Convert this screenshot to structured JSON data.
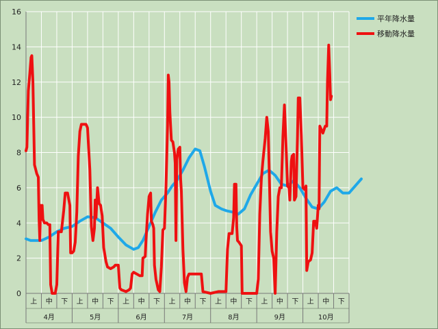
{
  "chart_data": {
    "type": "line",
    "ylim": [
      0,
      16
    ],
    "yticks": [
      "0",
      "2",
      "4",
      "6",
      "8",
      "10",
      "12",
      "14",
      "16"
    ],
    "grid": true,
    "legend_position": "top-right",
    "x_range": [
      0,
      21
    ],
    "sub_labels": [
      "上",
      "中",
      "下",
      "上",
      "中",
      "下",
      "上",
      "中",
      "下",
      "上",
      "中",
      "下",
      "上",
      "中",
      "下",
      "上",
      "中",
      "下",
      "上",
      "中",
      "下"
    ],
    "month_labels": [
      "4月",
      "5月",
      "6月",
      "7月",
      "8月",
      "9月",
      "10月"
    ],
    "colors": {
      "plot_bg": "#c9dfc0",
      "grid": "#ffffff",
      "axis": "#777777"
    },
    "series": [
      {
        "name": "平年降水量",
        "color": "#1fa8e8",
        "points": [
          [
            0.0,
            3.1
          ],
          [
            0.3,
            3.0
          ],
          [
            0.6,
            3.0
          ],
          [
            1.0,
            3.0
          ],
          [
            1.5,
            3.2
          ],
          [
            2.0,
            3.5
          ],
          [
            2.5,
            3.7
          ],
          [
            3.0,
            3.8
          ],
          [
            3.5,
            4.1
          ],
          [
            4.0,
            4.35
          ],
          [
            4.5,
            4.3
          ],
          [
            5.0,
            4.0
          ],
          [
            5.5,
            3.7
          ],
          [
            6.0,
            3.2
          ],
          [
            6.5,
            2.75
          ],
          [
            7.0,
            2.5
          ],
          [
            7.3,
            2.6
          ],
          [
            7.6,
            3.0
          ],
          [
            8.0,
            3.8
          ],
          [
            8.4,
            4.6
          ],
          [
            8.8,
            5.3
          ],
          [
            9.2,
            5.7
          ],
          [
            9.5,
            6.1
          ],
          [
            9.8,
            6.4
          ],
          [
            10.2,
            7.0
          ],
          [
            10.6,
            7.7
          ],
          [
            11.0,
            8.2
          ],
          [
            11.3,
            8.1
          ],
          [
            11.6,
            7.2
          ],
          [
            12.0,
            5.8
          ],
          [
            12.3,
            5.0
          ],
          [
            12.7,
            4.8
          ],
          [
            13.0,
            4.7
          ],
          [
            13.5,
            4.6
          ],
          [
            13.8,
            4.5
          ],
          [
            14.2,
            4.8
          ],
          [
            14.6,
            5.6
          ],
          [
            15.0,
            6.2
          ],
          [
            15.4,
            6.8
          ],
          [
            15.8,
            7.0
          ],
          [
            16.2,
            6.7
          ],
          [
            16.6,
            6.2
          ],
          [
            17.0,
            6.1
          ],
          [
            17.4,
            6.4
          ],
          [
            17.8,
            6.0
          ],
          [
            18.2,
            5.4
          ],
          [
            18.6,
            4.9
          ],
          [
            19.0,
            4.8
          ],
          [
            19.4,
            5.2
          ],
          [
            19.8,
            5.8
          ],
          [
            20.2,
            6.0
          ],
          [
            20.6,
            5.7
          ],
          [
            21.0,
            5.7
          ],
          [
            21.4,
            6.1
          ],
          [
            21.8,
            6.5
          ]
        ]
      },
      {
        "name": "移動降水量",
        "color": "#ee1111",
        "points": [
          [
            0.0,
            8.1
          ],
          [
            0.06,
            8.3
          ],
          [
            0.15,
            11.5
          ],
          [
            0.25,
            12.5
          ],
          [
            0.33,
            13.4
          ],
          [
            0.38,
            13.5
          ],
          [
            0.45,
            12.0
          ],
          [
            0.55,
            7.3
          ],
          [
            0.7,
            6.8
          ],
          [
            0.8,
            6.6
          ],
          [
            0.85,
            4.2
          ],
          [
            0.9,
            3.0
          ],
          [
            0.95,
            5.0
          ],
          [
            1.0,
            4.2
          ],
          [
            1.05,
            5.0
          ],
          [
            1.1,
            4.2
          ],
          [
            1.2,
            4.0
          ],
          [
            1.35,
            4.0
          ],
          [
            1.45,
            3.9
          ],
          [
            1.55,
            3.9
          ],
          [
            1.6,
            0.5
          ],
          [
            1.7,
            0.0
          ],
          [
            1.9,
            0.0
          ],
          [
            2.0,
            0.5
          ],
          [
            2.1,
            3.5
          ],
          [
            2.3,
            3.5
          ],
          [
            2.45,
            4.7
          ],
          [
            2.55,
            5.7
          ],
          [
            2.7,
            5.7
          ],
          [
            2.85,
            5.0
          ],
          [
            2.9,
            2.3
          ],
          [
            3.0,
            2.3
          ],
          [
            3.1,
            2.4
          ],
          [
            3.2,
            2.9
          ],
          [
            3.3,
            4.6
          ],
          [
            3.4,
            7.8
          ],
          [
            3.5,
            9.2
          ],
          [
            3.6,
            9.6
          ],
          [
            3.75,
            9.6
          ],
          [
            3.9,
            9.6
          ],
          [
            4.0,
            9.4
          ],
          [
            4.15,
            7.0
          ],
          [
            4.25,
            3.8
          ],
          [
            4.35,
            3.0
          ],
          [
            4.45,
            3.7
          ],
          [
            4.5,
            5.3
          ],
          [
            4.55,
            4.3
          ],
          [
            4.65,
            6.0
          ],
          [
            4.75,
            5.1
          ],
          [
            4.85,
            5.0
          ],
          [
            4.95,
            4.4
          ],
          [
            5.05,
            2.6
          ],
          [
            5.2,
            1.8
          ],
          [
            5.3,
            1.5
          ],
          [
            5.5,
            1.4
          ],
          [
            5.7,
            1.5
          ],
          [
            5.8,
            1.6
          ],
          [
            6.0,
            1.6
          ],
          [
            6.1,
            0.3
          ],
          [
            6.2,
            0.2
          ],
          [
            6.5,
            0.1
          ],
          [
            6.7,
            0.2
          ],
          [
            6.8,
            0.3
          ],
          [
            6.9,
            1.1
          ],
          [
            7.0,
            1.2
          ],
          [
            7.2,
            1.1
          ],
          [
            7.4,
            1.0
          ],
          [
            7.55,
            1.0
          ],
          [
            7.6,
            2.0
          ],
          [
            7.75,
            2.1
          ],
          [
            7.8,
            3.0
          ],
          [
            7.9,
            4.5
          ],
          [
            8.0,
            5.5
          ],
          [
            8.1,
            5.7
          ],
          [
            8.15,
            4.1
          ],
          [
            8.25,
            3.9
          ],
          [
            8.3,
            3.7
          ],
          [
            8.35,
            1.6
          ],
          [
            8.45,
            0.8
          ],
          [
            8.6,
            0.2
          ],
          [
            8.7,
            0.1
          ],
          [
            8.8,
            1.5
          ],
          [
            8.9,
            3.6
          ],
          [
            9.0,
            3.7
          ],
          [
            9.1,
            6.0
          ],
          [
            9.2,
            9.5
          ],
          [
            9.25,
            12.4
          ],
          [
            9.3,
            12.0
          ],
          [
            9.35,
            10.3
          ],
          [
            9.45,
            8.7
          ],
          [
            9.55,
            8.6
          ],
          [
            9.65,
            8.0
          ],
          [
            9.7,
            7.4
          ],
          [
            9.75,
            3.0
          ],
          [
            9.8,
            7.6
          ],
          [
            9.9,
            8.2
          ],
          [
            10.0,
            8.3
          ],
          [
            10.05,
            6.5
          ],
          [
            10.1,
            5.8
          ],
          [
            10.2,
            2.5
          ],
          [
            10.3,
            0.6
          ],
          [
            10.4,
            0.1
          ],
          [
            10.5,
            0.9
          ],
          [
            10.6,
            1.1
          ],
          [
            11.0,
            1.1
          ],
          [
            11.4,
            1.1
          ],
          [
            11.5,
            0.1
          ],
          [
            12.0,
            0.0
          ],
          [
            12.5,
            0.1
          ],
          [
            13.0,
            0.1
          ],
          [
            13.1,
            2.5
          ],
          [
            13.2,
            3.4
          ],
          [
            13.3,
            3.4
          ],
          [
            13.4,
            3.4
          ],
          [
            13.5,
            4.3
          ],
          [
            13.55,
            6.2
          ],
          [
            13.65,
            6.2
          ],
          [
            13.7,
            3.8
          ],
          [
            13.75,
            3.0
          ],
          [
            13.85,
            2.9
          ],
          [
            14.0,
            2.7
          ],
          [
            14.05,
            0.0
          ],
          [
            14.5,
            0.0
          ],
          [
            15.0,
            0.0
          ],
          [
            15.1,
            0.8
          ],
          [
            15.2,
            4.5
          ],
          [
            15.3,
            6.5
          ],
          [
            15.4,
            7.5
          ],
          [
            15.55,
            8.8
          ],
          [
            15.65,
            10.0
          ],
          [
            15.75,
            9.2
          ],
          [
            15.8,
            7.4
          ],
          [
            15.85,
            5.5
          ],
          [
            15.9,
            3.5
          ],
          [
            16.0,
            2.4
          ],
          [
            16.1,
            2.0
          ],
          [
            16.2,
            0.0
          ],
          [
            16.3,
            3.5
          ],
          [
            16.4,
            5.5
          ],
          [
            16.5,
            6.0
          ],
          [
            16.6,
            6.0
          ],
          [
            16.7,
            8.9
          ],
          [
            16.8,
            10.7
          ],
          [
            16.9,
            8.6
          ],
          [
            17.0,
            6.1
          ],
          [
            17.1,
            6.0
          ],
          [
            17.15,
            5.3
          ],
          [
            17.25,
            7.5
          ],
          [
            17.3,
            7.8
          ],
          [
            17.4,
            7.9
          ],
          [
            17.45,
            5.3
          ],
          [
            17.55,
            5.5
          ],
          [
            17.65,
            8.9
          ],
          [
            17.7,
            11.1
          ],
          [
            17.8,
            11.1
          ],
          [
            17.9,
            9.0
          ],
          [
            18.0,
            6.0
          ],
          [
            18.1,
            5.9
          ],
          [
            18.2,
            6.1
          ],
          [
            18.25,
            1.3
          ],
          [
            18.35,
            1.8
          ],
          [
            18.5,
            1.9
          ],
          [
            18.6,
            2.3
          ],
          [
            18.7,
            4.1
          ],
          [
            18.8,
            4.1
          ],
          [
            18.9,
            3.7
          ],
          [
            19.0,
            5.0
          ],
          [
            19.05,
            4.8
          ],
          [
            19.1,
            9.5
          ],
          [
            19.2,
            9.3
          ],
          [
            19.3,
            9.1
          ],
          [
            19.45,
            9.5
          ],
          [
            19.55,
            9.5
          ],
          [
            19.6,
            12.0
          ],
          [
            19.68,
            14.1
          ],
          [
            19.75,
            12.4
          ],
          [
            19.8,
            11.0
          ],
          [
            19.85,
            11.2
          ]
        ]
      }
    ]
  }
}
